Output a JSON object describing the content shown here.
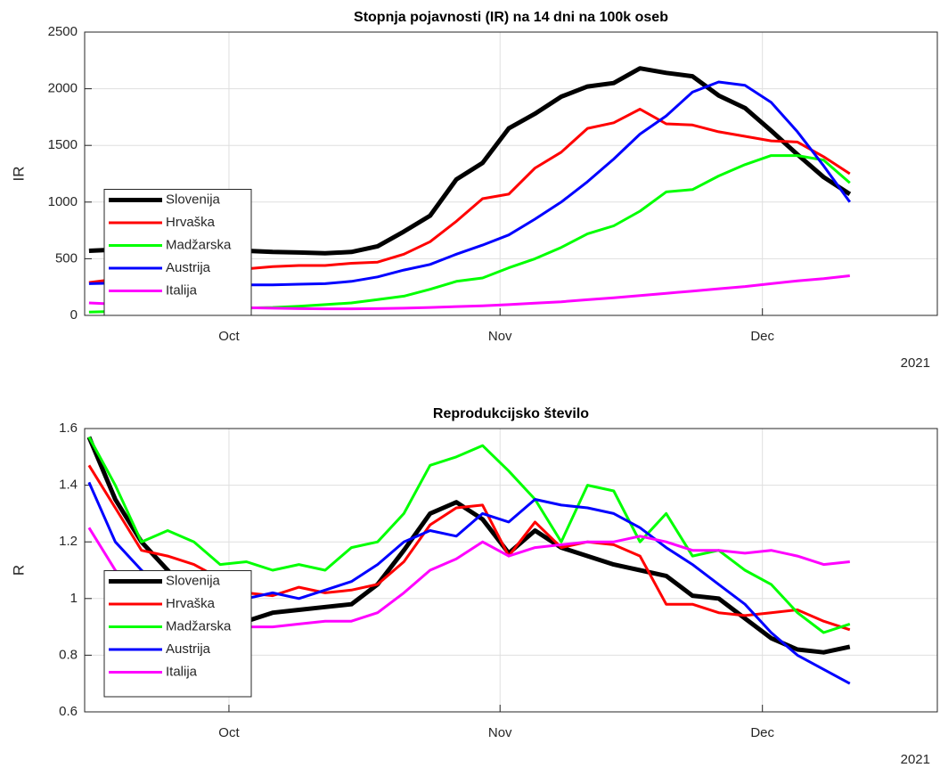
{
  "chart_data": [
    {
      "type": "line",
      "title": "Stopnja pojavnosti (IR) na 14 dni na 100k oseb",
      "ylabel": "IR",
      "x_secondary_label": "2021",
      "x": [
        258,
        261,
        264,
        267,
        270,
        273,
        276,
        279,
        282,
        285,
        288,
        291,
        294,
        297,
        300,
        303,
        306,
        309,
        312,
        315,
        318,
        321,
        324,
        327,
        330,
        333,
        336,
        339,
        342,
        345
      ],
      "xlim": [
        257.5,
        355
      ],
      "xticks": [
        {
          "value": 274,
          "label": "Oct"
        },
        {
          "value": 305,
          "label": "Nov"
        },
        {
          "value": 335,
          "label": "Dec"
        }
      ],
      "ylim": [
        0,
        2500
      ],
      "yticks": [
        0,
        500,
        1000,
        1500,
        2000,
        2500
      ],
      "grid": true,
      "legend": "lower left",
      "series": [
        {
          "name": "Slovenija",
          "color": "#000000",
          "line_width": 5,
          "values": [
            570,
            580,
            585,
            580,
            575,
            578,
            570,
            560,
            555,
            548,
            560,
            610,
            740,
            880,
            1200,
            1345,
            1650,
            1780,
            1930,
            2020,
            2050,
            2180,
            2140,
            2110,
            1940,
            1830,
            1630,
            1420,
            1220,
            1070
          ]
        },
        {
          "name": "Hrvaška",
          "color": "#ff0000",
          "line_width": 3,
          "values": [
            290,
            320,
            360,
            380,
            400,
            410,
            410,
            430,
            440,
            440,
            460,
            470,
            540,
            650,
            830,
            1030,
            1070,
            1300,
            1440,
            1650,
            1700,
            1820,
            1690,
            1680,
            1620,
            1580,
            1540,
            1530,
            1400,
            1250
          ]
        },
        {
          "name": "Madžarska",
          "color": "#00ff00",
          "line_width": 3,
          "values": [
            30,
            35,
            40,
            45,
            55,
            60,
            65,
            70,
            80,
            95,
            110,
            140,
            170,
            230,
            300,
            330,
            420,
            500,
            600,
            720,
            790,
            920,
            1090,
            1110,
            1230,
            1330,
            1410,
            1410,
            1370,
            1170
          ]
        },
        {
          "name": "Austrija",
          "color": "#0000ff",
          "line_width": 3,
          "values": [
            280,
            285,
            275,
            270,
            270,
            270,
            270,
            270,
            275,
            280,
            300,
            340,
            400,
            450,
            540,
            620,
            710,
            850,
            1000,
            1180,
            1380,
            1600,
            1760,
            1970,
            2060,
            2030,
            1880,
            1620,
            1320,
            1000
          ]
        },
        {
          "name": "Italija",
          "color": "#ff00ff",
          "line_width": 3,
          "values": [
            110,
            100,
            95,
            85,
            78,
            72,
            68,
            64,
            60,
            58,
            58,
            60,
            64,
            70,
            78,
            85,
            95,
            108,
            120,
            138,
            155,
            175,
            195,
            215,
            235,
            255,
            280,
            305,
            325,
            350
          ]
        }
      ]
    },
    {
      "type": "line",
      "title": "Reprodukcijsko število",
      "ylabel": "R",
      "x_secondary_label": "2021",
      "x": [
        258,
        261,
        264,
        267,
        270,
        273,
        276,
        279,
        282,
        285,
        288,
        291,
        294,
        297,
        300,
        303,
        306,
        309,
        312,
        315,
        318,
        321,
        324,
        327,
        330,
        333,
        336,
        339,
        342,
        345
      ],
      "xlim": [
        257.5,
        355
      ],
      "xticks": [
        {
          "value": 274,
          "label": "Oct"
        },
        {
          "value": 305,
          "label": "Nov"
        },
        {
          "value": 335,
          "label": "Dec"
        }
      ],
      "ylim": [
        0.6,
        1.6
      ],
      "yticks": [
        0.6,
        0.8,
        1,
        1.2,
        1.4,
        1.6
      ],
      "grid": true,
      "legend": "lower left",
      "series": [
        {
          "name": "Slovenija",
          "color": "#000000",
          "line_width": 5,
          "values": [
            1.57,
            1.35,
            1.2,
            1.1,
            1.0,
            0.93,
            0.92,
            0.95,
            0.96,
            0.97,
            0.98,
            1.05,
            1.17,
            1.3,
            1.34,
            1.28,
            1.16,
            1.24,
            1.18,
            1.15,
            1.12,
            1.1,
            1.08,
            1.01,
            1.0,
            0.93,
            0.86,
            0.82,
            0.81,
            0.83
          ]
        },
        {
          "name": "Hrvaška",
          "color": "#ff0000",
          "line_width": 3,
          "values": [
            1.47,
            1.32,
            1.17,
            1.15,
            1.12,
            1.07,
            1.02,
            1.01,
            1.04,
            1.02,
            1.03,
            1.05,
            1.13,
            1.26,
            1.32,
            1.33,
            1.15,
            1.27,
            1.18,
            1.2,
            1.19,
            1.15,
            0.98,
            0.98,
            0.95,
            0.94,
            0.95,
            0.96,
            0.92,
            0.89
          ]
        },
        {
          "name": "Madžarska",
          "color": "#00ff00",
          "line_width": 3,
          "values": [
            1.57,
            1.4,
            1.2,
            1.24,
            1.2,
            1.12,
            1.13,
            1.1,
            1.12,
            1.1,
            1.18,
            1.2,
            1.3,
            1.47,
            1.5,
            1.54,
            1.45,
            1.35,
            1.2,
            1.4,
            1.38,
            1.2,
            1.3,
            1.15,
            1.17,
            1.1,
            1.05,
            0.95,
            0.88,
            0.91
          ]
        },
        {
          "name": "Austrija",
          "color": "#0000ff",
          "line_width": 3,
          "values": [
            1.41,
            1.2,
            1.1,
            1.02,
            1.0,
            0.98,
            1.0,
            1.02,
            1.0,
            1.03,
            1.06,
            1.12,
            1.2,
            1.24,
            1.22,
            1.3,
            1.27,
            1.35,
            1.33,
            1.32,
            1.3,
            1.25,
            1.18,
            1.12,
            1.05,
            0.98,
            0.88,
            0.8,
            0.75,
            0.7
          ]
        },
        {
          "name": "Italija",
          "color": "#ff00ff",
          "line_width": 3,
          "values": [
            1.25,
            1.1,
            1.0,
            0.95,
            0.92,
            0.9,
            0.9,
            0.9,
            0.91,
            0.92,
            0.92,
            0.95,
            1.02,
            1.1,
            1.14,
            1.2,
            1.15,
            1.18,
            1.19,
            1.2,
            1.2,
            1.22,
            1.2,
            1.17,
            1.17,
            1.16,
            1.17,
            1.15,
            1.12,
            1.13
          ]
        }
      ]
    }
  ]
}
